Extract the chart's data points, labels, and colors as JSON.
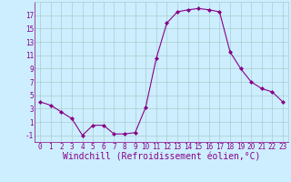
{
  "x": [
    0,
    1,
    2,
    3,
    4,
    5,
    6,
    7,
    8,
    9,
    10,
    11,
    12,
    13,
    14,
    15,
    16,
    17,
    18,
    19,
    20,
    21,
    22,
    23
  ],
  "y": [
    4.0,
    3.5,
    2.5,
    1.5,
    -1.0,
    0.5,
    0.5,
    -0.8,
    -0.8,
    -0.6,
    3.2,
    10.5,
    15.8,
    17.5,
    17.8,
    18.0,
    17.8,
    17.5,
    11.5,
    9.0,
    7.0,
    6.0,
    5.5,
    4.0
  ],
  "line_color": "#880088",
  "marker": "D",
  "marker_size": 2,
  "bg_color": "#cceeff",
  "grid_color": "#aacccc",
  "xlabel": "Windchill (Refroidissement éolien,°C)",
  "ylim": [
    -2,
    19
  ],
  "xlim": [
    -0.5,
    23.5
  ],
  "yticks": [
    -1,
    1,
    3,
    5,
    7,
    9,
    11,
    13,
    15,
    17
  ],
  "xticks": [
    0,
    1,
    2,
    3,
    4,
    5,
    6,
    7,
    8,
    9,
    10,
    11,
    12,
    13,
    14,
    15,
    16,
    17,
    18,
    19,
    20,
    21,
    22,
    23
  ],
  "tick_label_fontsize": 5.5,
  "xlabel_fontsize": 7.0,
  "tick_color": "#880088",
  "label_color": "#880088",
  "spine_color": "#880088"
}
